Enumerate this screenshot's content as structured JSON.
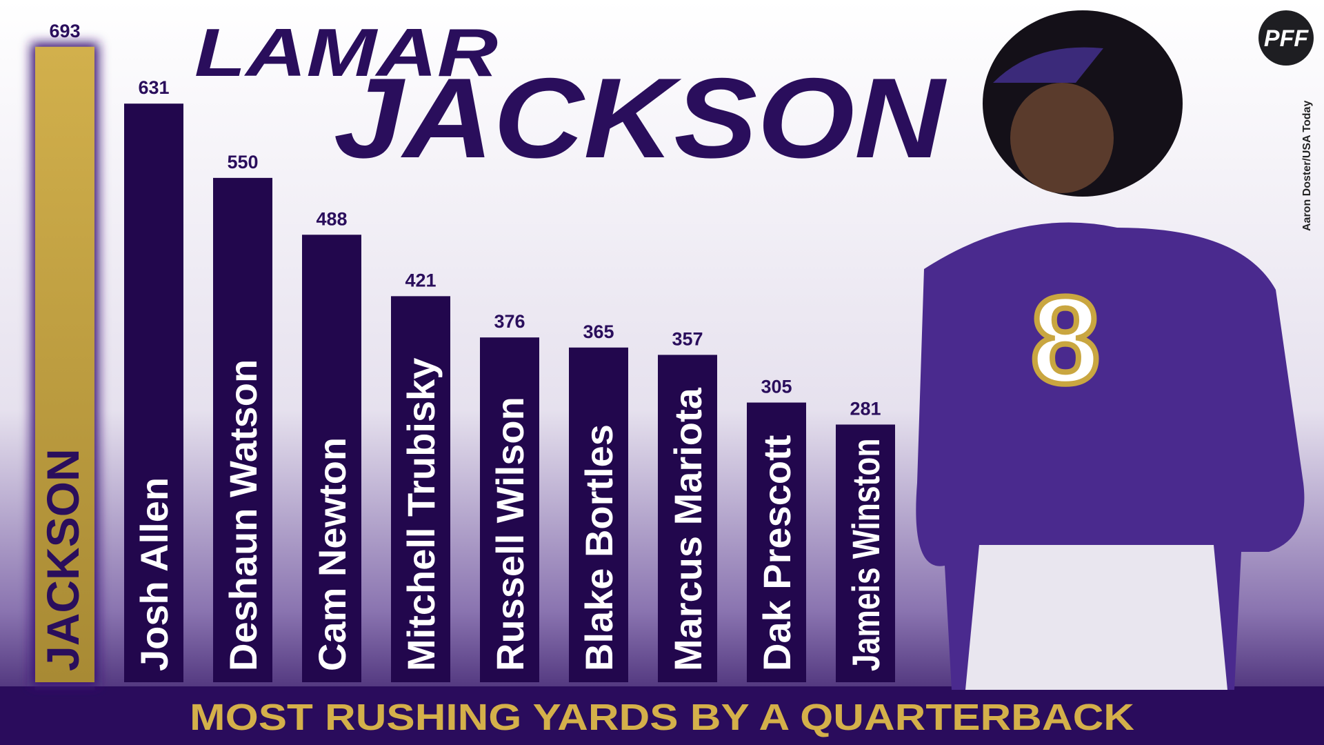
{
  "chart_data": {
    "type": "bar",
    "title_lines": [
      "LAMAR",
      "JACKSON"
    ],
    "caption": "MOST RUSHING YARDS BY A QUARTERBACK",
    "logo": "PFF",
    "credit": "Aaron Doster/USA Today",
    "categories": [
      "JACKSON",
      "Josh Allen",
      "Deshaun Watson",
      "Cam Newton",
      "Mitchell Trubisky",
      "Russell Wilson",
      "Blake Bortles",
      "Marcus Mariota",
      "Dak Prescott",
      "Jameis Winston"
    ],
    "values": [
      693,
      631,
      550,
      488,
      421,
      376,
      365,
      357,
      305,
      281
    ],
    "colors": [
      "#c9a640",
      "#22074d",
      "#22074d",
      "#22074d",
      "#22074d",
      "#22074d",
      "#22074d",
      "#22074d",
      "#22074d",
      "#22074d"
    ],
    "ylim": [
      0,
      744
    ]
  }
}
